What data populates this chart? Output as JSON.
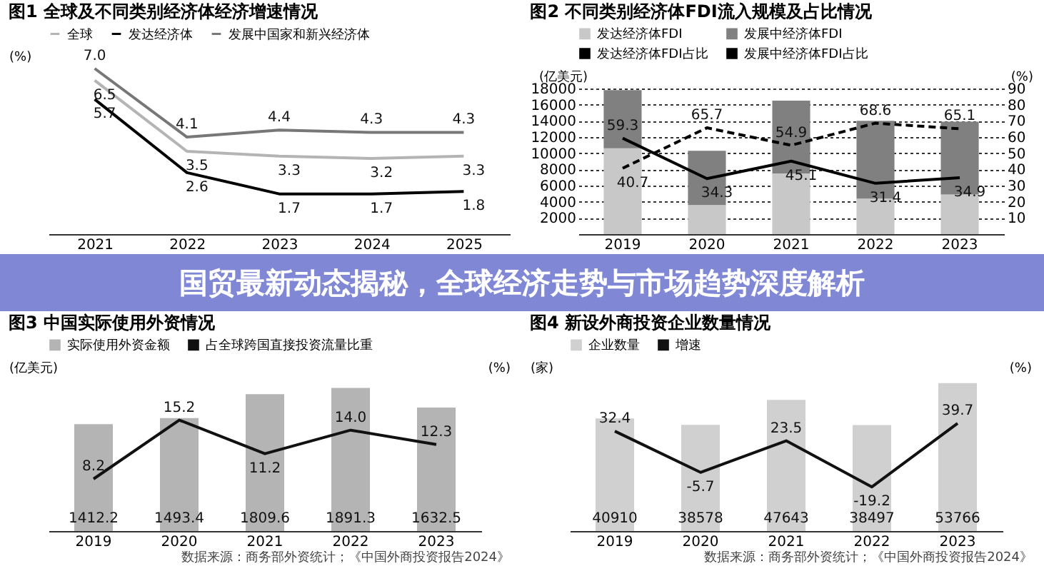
{
  "chart_data": [
    {
      "type": "line",
      "title": "图1 全球及不同类别经济体经济增速情况",
      "ylabel": "(%)",
      "categories": [
        "2021",
        "2022",
        "2023",
        "2024",
        "2025"
      ],
      "legend": "top",
      "marker": "none",
      "series": [
        {
          "name": "全球",
          "color": "#b4b4b4",
          "values": [
            6.5,
            3.5,
            3.3,
            3.2,
            3.3
          ],
          "value_labels": [
            "6.5",
            "3.5",
            "3.3",
            "3.2",
            "3.3"
          ]
        },
        {
          "name": "发达经济体",
          "color": "#000000",
          "values": [
            5.7,
            2.6,
            1.7,
            1.7,
            1.8
          ],
          "value_labels": [
            "5.7",
            "2.6",
            "1.7",
            "1.7",
            "1.8"
          ]
        },
        {
          "name": "发展中国家和新兴经济体",
          "color": "#777777",
          "values": [
            7.0,
            4.1,
            4.4,
            4.3,
            4.3
          ],
          "value_labels": [
            "7.0",
            "4.1",
            "4.4",
            "4.3",
            "4.3"
          ]
        }
      ]
    },
    {
      "type": "bar",
      "title": "图2 不同类别经济体FDI流入规模及占比情况",
      "ylabel": "(亿美元)",
      "y2label": "(%)",
      "categories": [
        "2019",
        "2020",
        "2021",
        "2022",
        "2023"
      ],
      "stacked": true,
      "legend": "top",
      "grid": "y",
      "marker": "none",
      "ylim": [
        0,
        18000
      ],
      "yticks": [
        2000,
        4000,
        6000,
        8000,
        10000,
        12000,
        14000,
        16000,
        18000
      ],
      "y2lim": [
        0,
        90
      ],
      "y2ticks": [
        10,
        20,
        30,
        40,
        50,
        60,
        70,
        80,
        90
      ],
      "series": [
        {
          "name": "发达经济体FDI",
          "color": "#c8c8c8",
          "values": [
            10600,
            3600,
            7500,
            4400,
            4900
          ]
        },
        {
          "name": "发展中经济体FDI",
          "color": "#808080",
          "values": [
            7200,
            6700,
            9000,
            9600,
            9000
          ]
        },
        {
          "type": "line",
          "axis": "y2",
          "name": "发达经济体FDI占比",
          "color": "#000000",
          "line_style": "solid",
          "values": [
            59.3,
            34.3,
            45.1,
            31.4,
            34.9
          ],
          "value_labels": [
            "59.3",
            "34.3",
            "45.1",
            "31.4",
            "34.9"
          ]
        },
        {
          "type": "line",
          "axis": "y2",
          "name": "发展中经济体FDI占比",
          "color": "#000000",
          "line_style": "dashed",
          "values": [
            40.7,
            65.7,
            54.9,
            68.6,
            65.1
          ],
          "value_labels": [
            "40.7",
            "65.7",
            "54.9",
            "68.6",
            "65.1"
          ]
        }
      ]
    },
    {
      "type": "other",
      "title": "国贸最新动态揭秘，全球经济走势与市场趋势深度解析"
    },
    {
      "type": "bar",
      "title": "图3 中国实际使用外资情况",
      "ylabel": "(亿美元)",
      "y2label": "(%)",
      "categories": [
        "2019",
        "2020",
        "2021",
        "2022",
        "2023"
      ],
      "legend": "top",
      "marker": "none",
      "annotations": [
        "数据来源：商务部外资统计；《中国外商投资报告2024》"
      ],
      "series": [
        {
          "name": "实际使用外资金额",
          "color": "#b4b4b4",
          "values": [
            1412.2,
            1493.4,
            1809.6,
            1891.3,
            1632.5
          ],
          "value_labels": [
            "1412.2",
            "1493.4",
            "1809.6",
            "1891.3",
            "1632.5"
          ]
        },
        {
          "type": "line",
          "axis": "y2",
          "name": "占全球跨国直接投资流量比重",
          "color": "#111111",
          "values": [
            8.2,
            15.2,
            11.2,
            14.0,
            12.3
          ],
          "value_labels": [
            "8.2",
            "15.2",
            "11.2",
            "14.0",
            "12.3"
          ]
        }
      ]
    },
    {
      "type": "bar",
      "title": "图4 新设外商投资企业数量情况",
      "ylabel": "(家)",
      "y2label": "(%)",
      "categories": [
        "2019",
        "2020",
        "2021",
        "2022",
        "2023"
      ],
      "legend": "top",
      "marker": "none",
      "annotations": [
        "数据来源：商务部外资统计；《中国外商投资报告2024》"
      ],
      "series": [
        {
          "name": "企业数量",
          "color": "#d0d0d0",
          "values": [
            40910,
            38578,
            47643,
            38497,
            53766
          ],
          "value_labels": [
            "40910",
            "38578",
            "47643",
            "38497",
            "53766"
          ]
        },
        {
          "type": "line",
          "axis": "y2",
          "name": "增速",
          "color": "#111111",
          "values": [
            32.4,
            -5.7,
            23.5,
            -19.2,
            39.7
          ],
          "value_labels": [
            "32.4",
            "-5.7",
            "23.5",
            "-19.2",
            "39.7"
          ]
        }
      ]
    }
  ]
}
